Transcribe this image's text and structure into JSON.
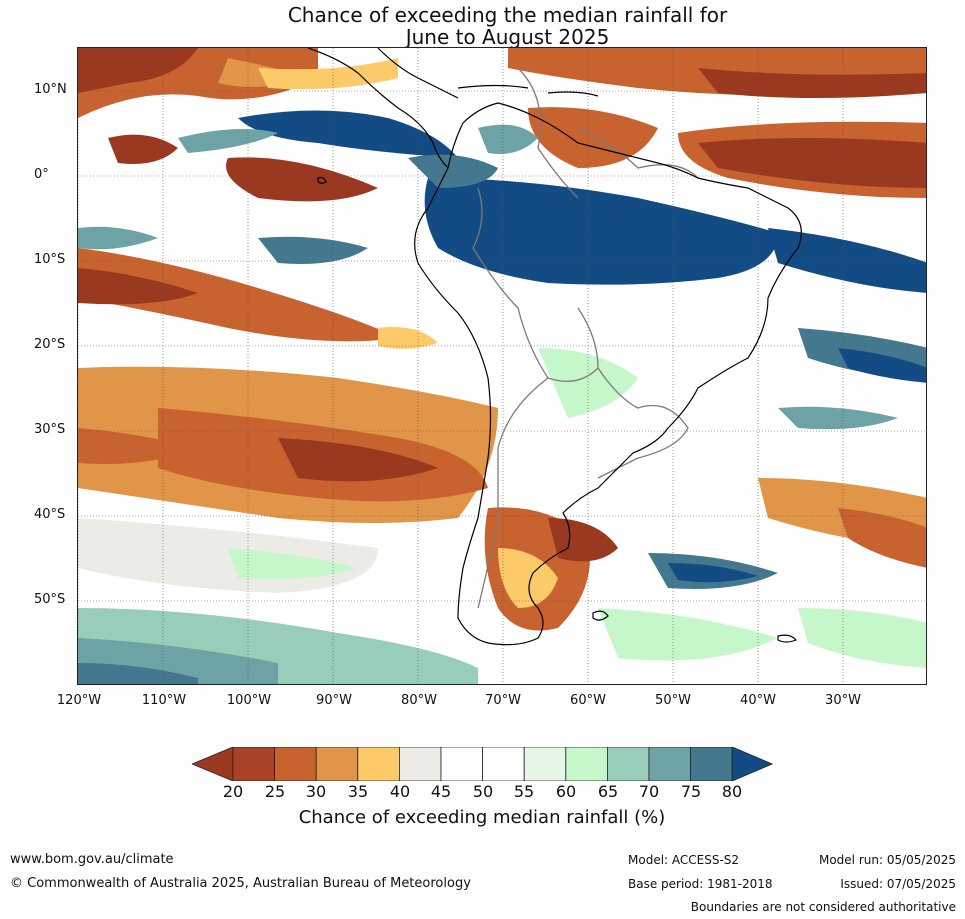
{
  "title_line1": "Chance of exceeding the median rainfall for",
  "title_line2": "June to August 2025",
  "lat_labels": [
    "10°N",
    "0°",
    "10°S",
    "20°S",
    "30°S",
    "40°S",
    "50°S"
  ],
  "lon_labels": [
    "120°W",
    "110°W",
    "100°W",
    "90°W",
    "80°W",
    "70°W",
    "60°W",
    "50°W",
    "40°W",
    "30°W"
  ],
  "colorbar": {
    "ticks": [
      "20",
      "25",
      "30",
      "35",
      "40",
      "45",
      "50",
      "55",
      "60",
      "65",
      "70",
      "75",
      "80"
    ],
    "colors": [
      "#a8432a",
      "#c8622f",
      "#e09548",
      "#fdca6a",
      "#ecebe6",
      "#ffffff",
      "#ffffff",
      "#e7f5e6",
      "#c5f7cb",
      "#97cdb9",
      "#6ea3a6",
      "#43788f"
    ],
    "under_color": "#9b3820",
    "over_color": "#134b85",
    "label": "Chance of exceeding median rainfall (%)"
  },
  "footer": {
    "website": "www.bom.gov.au/climate",
    "copyright": "© Commonwealth of Australia 2025, Australian Bureau of Meteorology",
    "model": "Model: ACCESS-S2",
    "base_period": "Base period: 1981-2018",
    "model_run": "Model run: 05/05/2025",
    "issued": "Issued: 07/05/2025",
    "disclaimer": "Boundaries are not considered authoritative"
  },
  "map_colors": {
    "dry_strong": "#9b3820",
    "dry": "#c8622f",
    "dry_mild": "#e09548",
    "dry_weak": "#fdca6a",
    "neutral": "#ecebe6",
    "wet_weak": "#c5f7cb",
    "wet_mild": "#97cdb9",
    "wet": "#6ea3a6",
    "wet_strong": "#43788f",
    "wet_extreme": "#134b85"
  }
}
